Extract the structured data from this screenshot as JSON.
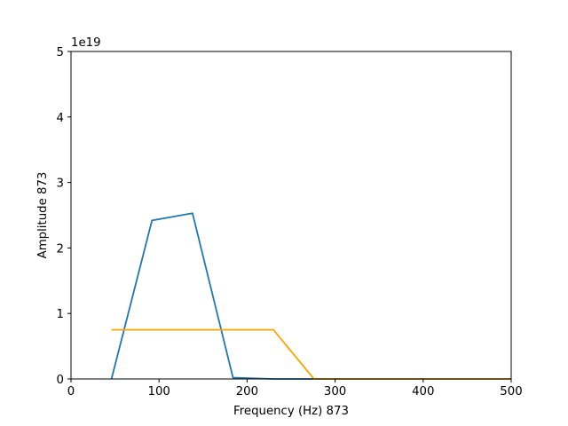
{
  "chart_data": {
    "type": "line",
    "title": "",
    "xlabel": "Frequency (Hz) 873",
    "ylabel": "Amplitude 873",
    "xlim": [
      0,
      500
    ],
    "ylim": [
      0,
      5
    ],
    "y_scale_label": "1e19",
    "xticks": [
      "0",
      "100",
      "200",
      "300",
      "400",
      "500"
    ],
    "yticks": [
      "0",
      "1",
      "2",
      "3",
      "4",
      "5"
    ],
    "grid": false,
    "legend": "none",
    "series": [
      {
        "color": "#1f77b4",
        "x": [
          46,
          92,
          138,
          184,
          230,
          276,
          322,
          368,
          414,
          460,
          500
        ],
        "y": [
          0,
          2.42,
          2.53,
          0.02,
          0.0,
          0.0,
          0.0,
          0.0,
          0.0,
          0.0,
          0.0
        ]
      },
      {
        "color": "#ffa500",
        "x": [
          46,
          92,
          138,
          184,
          230,
          276,
          322,
          368,
          414,
          460,
          500
        ],
        "y": [
          0.75,
          0.75,
          0.75,
          0.75,
          0.75,
          0.0,
          0.0,
          0.0,
          0.0,
          0.0,
          0.0
        ]
      }
    ]
  }
}
